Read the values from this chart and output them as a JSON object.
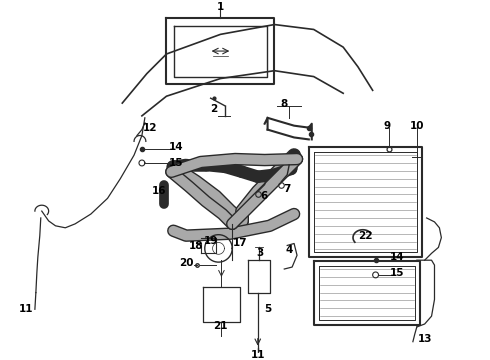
{
  "bg_color": "#ffffff",
  "line_color": "#2a2a2a",
  "label_color": "#000000",
  "figsize": [
    4.9,
    3.6
  ],
  "dpi": 100
}
